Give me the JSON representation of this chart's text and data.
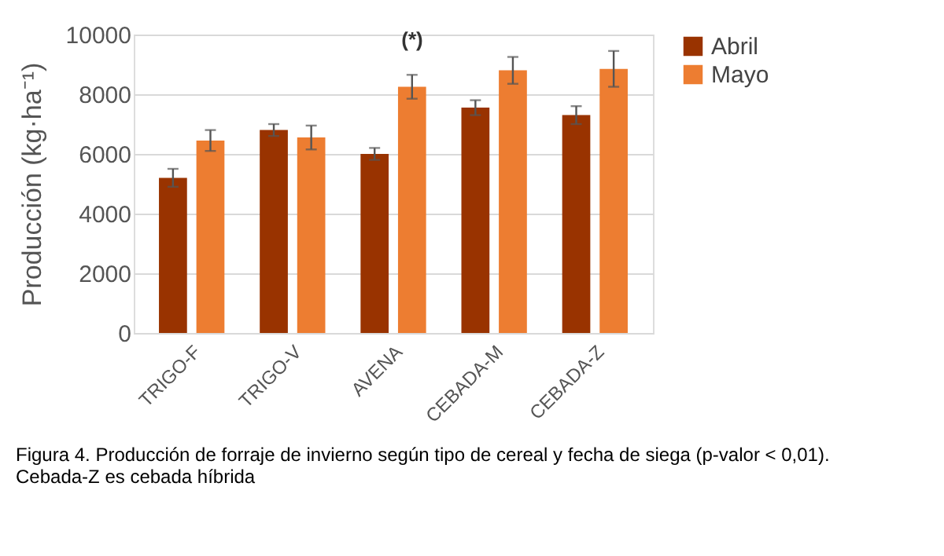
{
  "chart_data": {
    "type": "bar",
    "ylabel": "Producción (kg·ha⁻¹)",
    "categories": [
      "TRIGO-F",
      "TRIGO-V",
      "AVENA",
      "CEBADA-M",
      "CEBADA-Z"
    ],
    "series": [
      {
        "name": "Abril",
        "color": "#993300",
        "values": [
          5200,
          6800,
          6000,
          7550,
          7300
        ],
        "errors": [
          300,
          200,
          200,
          250,
          300
        ]
      },
      {
        "name": "Mayo",
        "color": "#ed7d31",
        "values": [
          6450,
          6550,
          8250,
          8800,
          8850
        ],
        "errors": [
          350,
          400,
          400,
          450,
          600
        ]
      }
    ],
    "ylim": [
      0,
      10000
    ],
    "yticks": [
      0,
      2000,
      4000,
      6000,
      8000,
      10000
    ],
    "grid": "y",
    "legend": "right",
    "annotations": [
      {
        "text": "(*)",
        "x": "AVENA",
        "y": 8250
      },
      "Figura 4. Producción de forraje de invierno según tipo de cereal y fecha de siega (p-valor < 0,01).",
      "Cebada-Z es cebada híbrida"
    ]
  }
}
